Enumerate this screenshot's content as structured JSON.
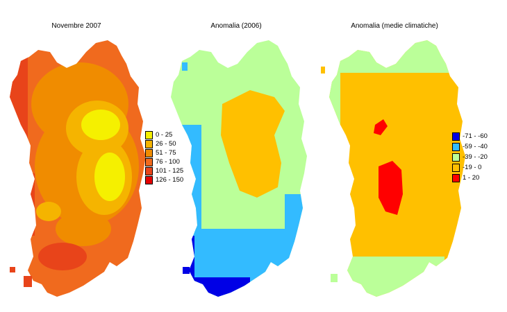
{
  "panels": [
    {
      "title": "Novembre 2007",
      "legend": [
        {
          "label": "0 - 25",
          "color": "#f5f000"
        },
        {
          "label": "26 - 50",
          "color": "#f5b400"
        },
        {
          "label": "51 - 75",
          "color": "#f08c00"
        },
        {
          "label": "76 - 100",
          "color": "#f06a1e"
        },
        {
          "label": "101 - 125",
          "color": "#e8441a"
        },
        {
          "label": "126 - 150",
          "color": "#e60000"
        }
      ]
    },
    {
      "title": "Anomalia (2006)",
      "legend": []
    },
    {
      "title": "Anomalia (medie climatiche)",
      "legend": [
        {
          "label": "-71 - -60",
          "color": "#0000e6"
        },
        {
          "label": "-59 - -40",
          "color": "#33bbff"
        },
        {
          "label": "-39 - -20",
          "color": "#bbff99"
        },
        {
          "label": "-19 - 0",
          "color": "#ffc000"
        },
        {
          "label": "1 - 20",
          "color": "#ff0000"
        }
      ]
    }
  ]
}
